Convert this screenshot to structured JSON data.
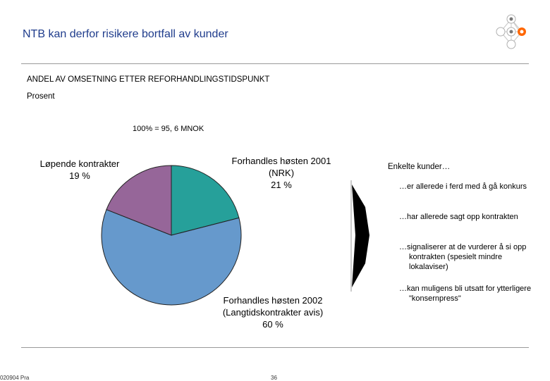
{
  "header": {
    "title": "NTB kan derfor risikere bortfall av kunder"
  },
  "chart_data": {
    "type": "pie",
    "title": "ANDEL AV OMSETNING ETTER REFORHANDLINGSTIDSPUNKT",
    "unit_label": "Prosent",
    "total_label": "100% = 95, 6 MNOK",
    "slices": [
      {
        "name": "Forhandles høsten 2001",
        "detail": "(NRK)",
        "value": 21,
        "value_label": "21 %",
        "color": "#26a09a"
      },
      {
        "name": "Forhandles høsten 2002",
        "detail": "(Langtidskontrakter avis)",
        "value": 60,
        "value_label": "60 %",
        "color": "#6699cc"
      },
      {
        "name": "Løpende kontrakter",
        "detail": "",
        "value": 19,
        "value_label": "19 %",
        "color": "#966699"
      }
    ]
  },
  "notes": {
    "heading": "Enkelte kunder…",
    "items": [
      "…er allerede i ferd med å gå konkurs",
      "…har allerede sagt opp kontrakten",
      "…signaliserer at de vurderer å si opp kontrakten (spesielt mindre lokalaviser)",
      "…kan muligens bli utsatt for ytterligere \"konsernpress\""
    ]
  },
  "footer": {
    "left_text": "020904 Pra",
    "page_number": "36"
  },
  "colors": {
    "title": "#1f3c8c",
    "logo_accent": "#ff6600",
    "arrow": "#000000"
  },
  "icons": {
    "logo": "network-nodes-icon"
  }
}
